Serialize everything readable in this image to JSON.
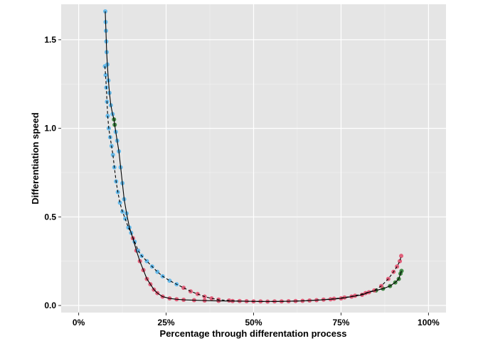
{
  "chart_data": {
    "type": "line",
    "title": "",
    "xlabel": "Percentage through differentation process",
    "ylabel": "Differentiation speed",
    "xlim": [
      -0.05,
      1.05
    ],
    "ylim": [
      -0.04,
      1.7
    ],
    "grid": true,
    "legend": "none",
    "x_ticks": [
      {
        "value": 0,
        "label": "0%"
      },
      {
        "value": 0.25,
        "label": "25%"
      },
      {
        "value": 0.5,
        "label": "50%"
      },
      {
        "value": 0.75,
        "label": "75%"
      },
      {
        "value": 1.0,
        "label": "100%"
      }
    ],
    "y_ticks": [
      {
        "value": 0,
        "label": "0.0"
      },
      {
        "value": 0.5,
        "label": "0.5"
      },
      {
        "value": 1.0,
        "label": "1.0"
      },
      {
        "value": 1.5,
        "label": "1.5"
      }
    ],
    "colors": {
      "panel": "#e5e5e5",
      "grid_major": "#ffffff",
      "grid_minor": "#f2f2f2",
      "line": "#000000",
      "point_blue": "#56b4e9",
      "point_red": "#e0506e",
      "point_green": "#2e7d32"
    },
    "series": [
      {
        "line": "solid",
        "points": [
          [
            0.076,
            1.66,
            "blue"
          ],
          [
            0.077,
            1.6,
            "blue"
          ],
          [
            0.078,
            1.55,
            "blue"
          ],
          [
            0.079,
            1.49,
            "blue"
          ],
          [
            0.08,
            1.43,
            "blue"
          ],
          [
            0.082,
            1.36,
            "blue"
          ],
          [
            0.085,
            1.27,
            "blue"
          ],
          [
            0.088,
            1.2,
            "blue"
          ],
          [
            0.092,
            1.13,
            "blue"
          ],
          [
            0.097,
            1.08,
            "blue"
          ],
          [
            0.101,
            1.05,
            "green"
          ],
          [
            0.103,
            1.02,
            "green"
          ],
          [
            0.106,
            0.98,
            "blue"
          ],
          [
            0.11,
            0.93,
            "blue"
          ],
          [
            0.115,
            0.87,
            "blue"
          ],
          [
            0.12,
            0.78,
            "blue"
          ],
          [
            0.125,
            0.69,
            "blue"
          ],
          [
            0.13,
            0.6,
            "blue"
          ],
          [
            0.137,
            0.52,
            "blue"
          ],
          [
            0.145,
            0.44,
            "blue"
          ],
          [
            0.155,
            0.38,
            "red"
          ],
          [
            0.165,
            0.31,
            "red"
          ],
          [
            0.175,
            0.25,
            "red"
          ],
          [
            0.185,
            0.2,
            "red"
          ],
          [
            0.195,
            0.15,
            "red"
          ],
          [
            0.205,
            0.12,
            "red"
          ],
          [
            0.215,
            0.09,
            "red"
          ],
          [
            0.225,
            0.07,
            "red"
          ],
          [
            0.24,
            0.05,
            "red"
          ],
          [
            0.26,
            0.04,
            "red"
          ],
          [
            0.28,
            0.035,
            "red"
          ],
          [
            0.3,
            0.032,
            "red"
          ],
          [
            0.33,
            0.03,
            "red"
          ],
          [
            0.36,
            0.028,
            "red"
          ],
          [
            0.4,
            0.026,
            "red"
          ],
          [
            0.44,
            0.025,
            "red"
          ],
          [
            0.48,
            0.024,
            "red"
          ],
          [
            0.52,
            0.023,
            "red"
          ],
          [
            0.56,
            0.023,
            "red"
          ],
          [
            0.6,
            0.024,
            "red"
          ],
          [
            0.64,
            0.026,
            "red"
          ],
          [
            0.68,
            0.03,
            "red"
          ],
          [
            0.72,
            0.035,
            "red"
          ],
          [
            0.75,
            0.04,
            "red"
          ],
          [
            0.78,
            0.05,
            "red"
          ],
          [
            0.81,
            0.06,
            "red"
          ],
          [
            0.83,
            0.075,
            "red"
          ],
          [
            0.85,
            0.085,
            "green"
          ],
          [
            0.87,
            0.095,
            "green"
          ],
          [
            0.89,
            0.11,
            "green"
          ],
          [
            0.905,
            0.13,
            "green"
          ],
          [
            0.915,
            0.15,
            "green"
          ],
          [
            0.92,
            0.18,
            "green"
          ],
          [
            0.923,
            0.195,
            "green"
          ]
        ]
      },
      {
        "line": "dashed",
        "points": [
          [
            0.075,
            1.35,
            "blue"
          ],
          [
            0.077,
            1.3,
            "blue"
          ],
          [
            0.079,
            1.23,
            "blue"
          ],
          [
            0.081,
            1.15,
            "blue"
          ],
          [
            0.083,
            1.07,
            "blue"
          ],
          [
            0.086,
            1.0,
            "blue"
          ],
          [
            0.09,
            0.95,
            "blue"
          ],
          [
            0.094,
            0.9,
            "blue"
          ],
          [
            0.098,
            0.85,
            "blue"
          ],
          [
            0.102,
            0.78,
            "blue"
          ],
          [
            0.107,
            0.7,
            "blue"
          ],
          [
            0.112,
            0.64,
            "blue"
          ],
          [
            0.118,
            0.58,
            "blue"
          ],
          [
            0.125,
            0.53,
            "blue"
          ],
          [
            0.133,
            0.49,
            "blue"
          ],
          [
            0.142,
            0.44,
            "blue"
          ],
          [
            0.15,
            0.41,
            "blue"
          ],
          [
            0.16,
            0.36,
            "blue"
          ],
          [
            0.17,
            0.31,
            "blue"
          ],
          [
            0.18,
            0.28,
            "blue"
          ],
          [
            0.195,
            0.25,
            "blue"
          ],
          [
            0.21,
            0.22,
            "blue"
          ],
          [
            0.225,
            0.19,
            "blue"
          ],
          [
            0.24,
            0.165,
            "blue"
          ],
          [
            0.26,
            0.14,
            "blue"
          ],
          [
            0.28,
            0.12,
            "blue"
          ],
          [
            0.3,
            0.1,
            "red"
          ],
          [
            0.32,
            0.08,
            "red"
          ],
          [
            0.34,
            0.065,
            "red"
          ],
          [
            0.36,
            0.05,
            "red"
          ],
          [
            0.38,
            0.04,
            "red"
          ],
          [
            0.4,
            0.033,
            "red"
          ],
          [
            0.43,
            0.028,
            "red"
          ],
          [
            0.46,
            0.025,
            "red"
          ],
          [
            0.5,
            0.023,
            "red"
          ],
          [
            0.54,
            0.022,
            "red"
          ],
          [
            0.58,
            0.023,
            "red"
          ],
          [
            0.62,
            0.025,
            "red"
          ],
          [
            0.66,
            0.028,
            "red"
          ],
          [
            0.7,
            0.033,
            "red"
          ],
          [
            0.73,
            0.038,
            "red"
          ],
          [
            0.76,
            0.045,
            "red"
          ],
          [
            0.79,
            0.055,
            "red"
          ],
          [
            0.82,
            0.07,
            "red"
          ],
          [
            0.845,
            0.085,
            "red"
          ],
          [
            0.865,
            0.11,
            "red"
          ],
          [
            0.885,
            0.15,
            "red"
          ],
          [
            0.9,
            0.19,
            "red"
          ],
          [
            0.91,
            0.22,
            "red"
          ],
          [
            0.918,
            0.25,
            "red"
          ],
          [
            0.922,
            0.28,
            "red"
          ]
        ]
      }
    ]
  }
}
